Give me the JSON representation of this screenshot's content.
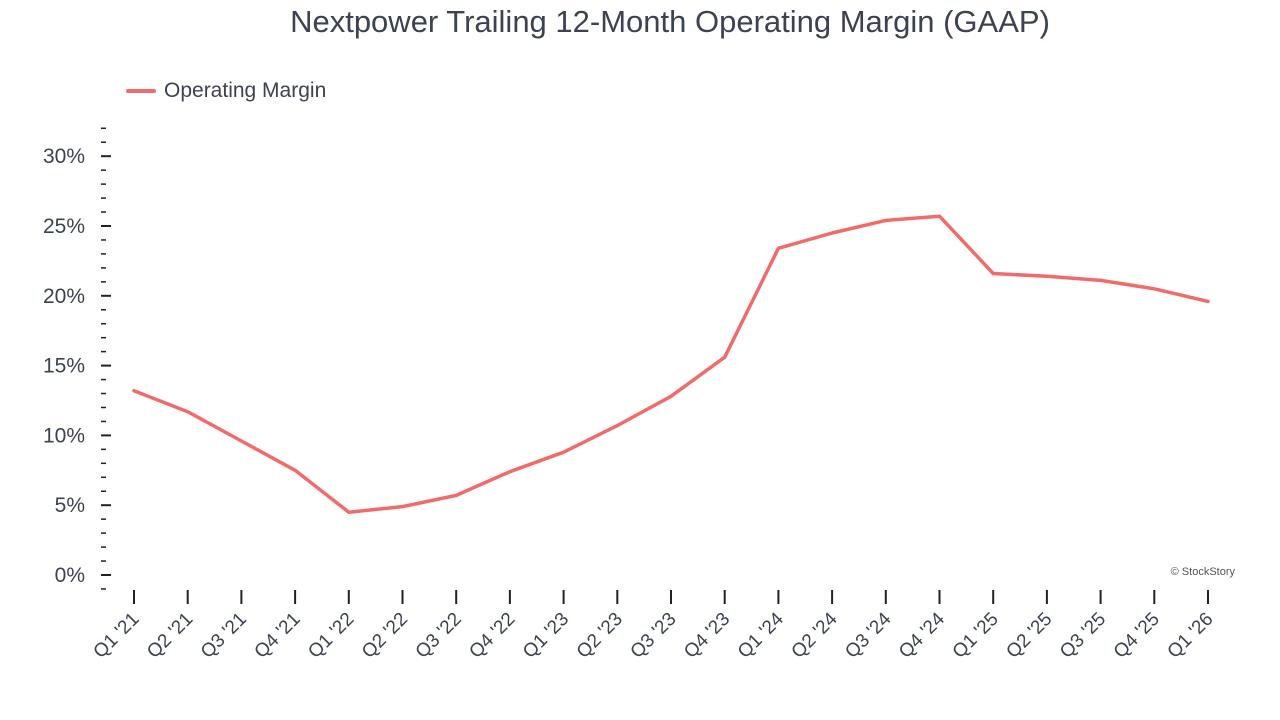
{
  "chart_data": {
    "type": "line",
    "title": "Nextpower Trailing 12-Month Operating Margin (GAAP)",
    "xlabel": "",
    "ylabel": "",
    "categories": [
      "Q1 '21",
      "Q2 '21",
      "Q3 '21",
      "Q4 '21",
      "Q1 '22",
      "Q2 '22",
      "Q3 '22",
      "Q4 '22",
      "Q1 '23",
      "Q2 '23",
      "Q3 '23",
      "Q4 '23",
      "Q1 '24",
      "Q2 '24",
      "Q3 '24",
      "Q4 '24",
      "Q1 '25",
      "Q2 '25",
      "Q3 '25",
      "Q4 '25",
      "Q1 '26"
    ],
    "series": [
      {
        "name": "Operating Margin",
        "color": "#f26b6b",
        "values": [
          13.2,
          11.7,
          9.6,
          7.5,
          4.5,
          4.9,
          5.7,
          7.4,
          8.8,
          10.7,
          12.8,
          15.6,
          23.4,
          24.5,
          25.4,
          25.7,
          21.6,
          21.4,
          21.1,
          20.5,
          19.6
        ]
      }
    ],
    "ylim": [
      -1,
      32.5
    ],
    "yticks": [
      0,
      5,
      10,
      15,
      20,
      25,
      30
    ],
    "ytick_labels": [
      "0%",
      "5%",
      "10%",
      "15%",
      "20%",
      "25%",
      "30%"
    ],
    "grid": false,
    "legend_position": "top-left",
    "watermark": "© StockStory"
  }
}
